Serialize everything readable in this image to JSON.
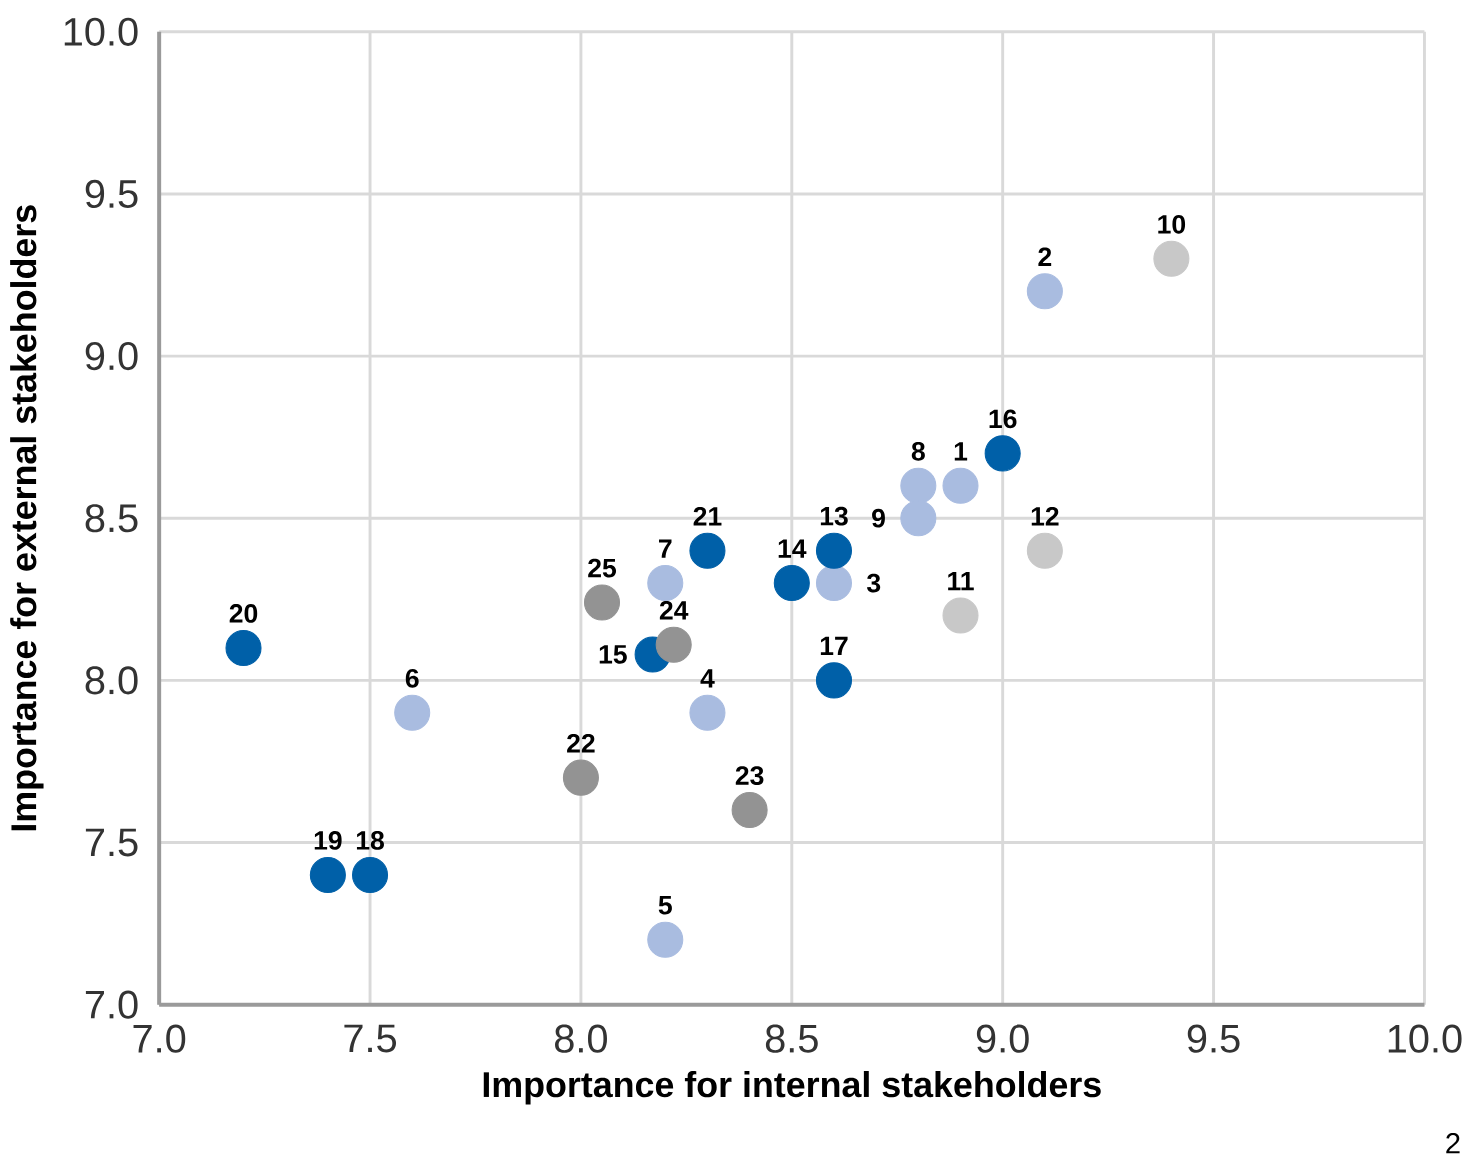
{
  "chart_data": {
    "type": "scatter",
    "xlabel": "Importance for internal stakeholders",
    "ylabel": "Importance for external stakeholders",
    "xlim": [
      7.0,
      10.0
    ],
    "ylim": [
      7.0,
      10.0
    ],
    "xticks": [
      {
        "value": 7.0,
        "label": "7.0"
      },
      {
        "value": 7.5,
        "label": "7.5"
      },
      {
        "value": 8.0,
        "label": "8.0"
      },
      {
        "value": 8.5,
        "label": "8.5"
      },
      {
        "value": 9.0,
        "label": "9.0"
      },
      {
        "value": 9.5,
        "label": "9.5"
      },
      {
        "value": 10.0,
        "label": "10.0"
      }
    ],
    "yticks": [
      {
        "value": 7.0,
        "label": "7.0"
      },
      {
        "value": 7.5,
        "label": "7.5"
      },
      {
        "value": 8.0,
        "label": "8.0"
      },
      {
        "value": 8.5,
        "label": "8.5"
      },
      {
        "value": 9.0,
        "label": "9.0"
      },
      {
        "value": 9.5,
        "label": "9.5"
      },
      {
        "value": 10.0,
        "label": "10.0"
      }
    ],
    "grid": true,
    "marker": "circle",
    "series": [
      {
        "color": "#a9bce0",
        "x": [
          8.9,
          9.1,
          8.6,
          8.3,
          8.2,
          7.6,
          8.2,
          8.8,
          8.8
        ],
        "values": [
          8.6,
          9.2,
          8.3,
          7.9,
          7.2,
          7.9,
          8.3,
          8.6,
          8.5
        ]
      },
      {
        "color": "#c8c8c8",
        "x": [
          9.4,
          8.9,
          9.1
        ],
        "values": [
          9.3,
          8.2,
          8.4
        ]
      },
      {
        "color": "#0060a8",
        "x": [
          8.6,
          8.5,
          8.17,
          9.0,
          8.6,
          7.5,
          7.4,
          7.2,
          8.3
        ],
        "values": [
          8.4,
          8.3,
          8.08,
          8.7,
          8.0,
          7.4,
          7.4,
          8.1,
          8.4
        ]
      },
      {
        "color": "#939393",
        "x": [
          8.0,
          8.4,
          8.22,
          8.05
        ],
        "values": [
          7.7,
          7.6,
          8.11,
          8.24
        ]
      }
    ],
    "annotations": [
      {
        "text": "1",
        "x": 8.9,
        "y": 8.6
      },
      {
        "text": "2",
        "x": 9.1,
        "y": 9.2
      },
      {
        "text": "3",
        "x": 8.6,
        "y": 8.3
      },
      {
        "text": "4",
        "x": 8.3,
        "y": 7.9
      },
      {
        "text": "5",
        "x": 8.2,
        "y": 7.2
      },
      {
        "text": "6",
        "x": 7.6,
        "y": 7.9
      },
      {
        "text": "7",
        "x": 8.2,
        "y": 8.3
      },
      {
        "text": "8",
        "x": 8.8,
        "y": 8.6
      },
      {
        "text": "9",
        "x": 8.8,
        "y": 8.5
      },
      {
        "text": "10",
        "x": 9.4,
        "y": 9.3
      },
      {
        "text": "11",
        "x": 8.9,
        "y": 8.2
      },
      {
        "text": "12",
        "x": 9.1,
        "y": 8.4
      },
      {
        "text": "13",
        "x": 8.6,
        "y": 8.4
      },
      {
        "text": "14",
        "x": 8.5,
        "y": 8.3
      },
      {
        "text": "15",
        "x": 8.17,
        "y": 8.08
      },
      {
        "text": "16",
        "x": 9.0,
        "y": 8.7
      },
      {
        "text": "17",
        "x": 8.6,
        "y": 8.0
      },
      {
        "text": "18",
        "x": 7.5,
        "y": 7.4
      },
      {
        "text": "19",
        "x": 7.4,
        "y": 7.4
      },
      {
        "text": "20",
        "x": 7.2,
        "y": 8.1
      },
      {
        "text": "21",
        "x": 8.3,
        "y": 8.4
      },
      {
        "text": "22",
        "x": 8.0,
        "y": 7.7
      },
      {
        "text": "23",
        "x": 8.4,
        "y": 7.6
      },
      {
        "text": "24",
        "x": 8.22,
        "y": 8.11
      },
      {
        "text": "25",
        "x": 8.05,
        "y": 8.24
      },
      "2"
    ]
  }
}
